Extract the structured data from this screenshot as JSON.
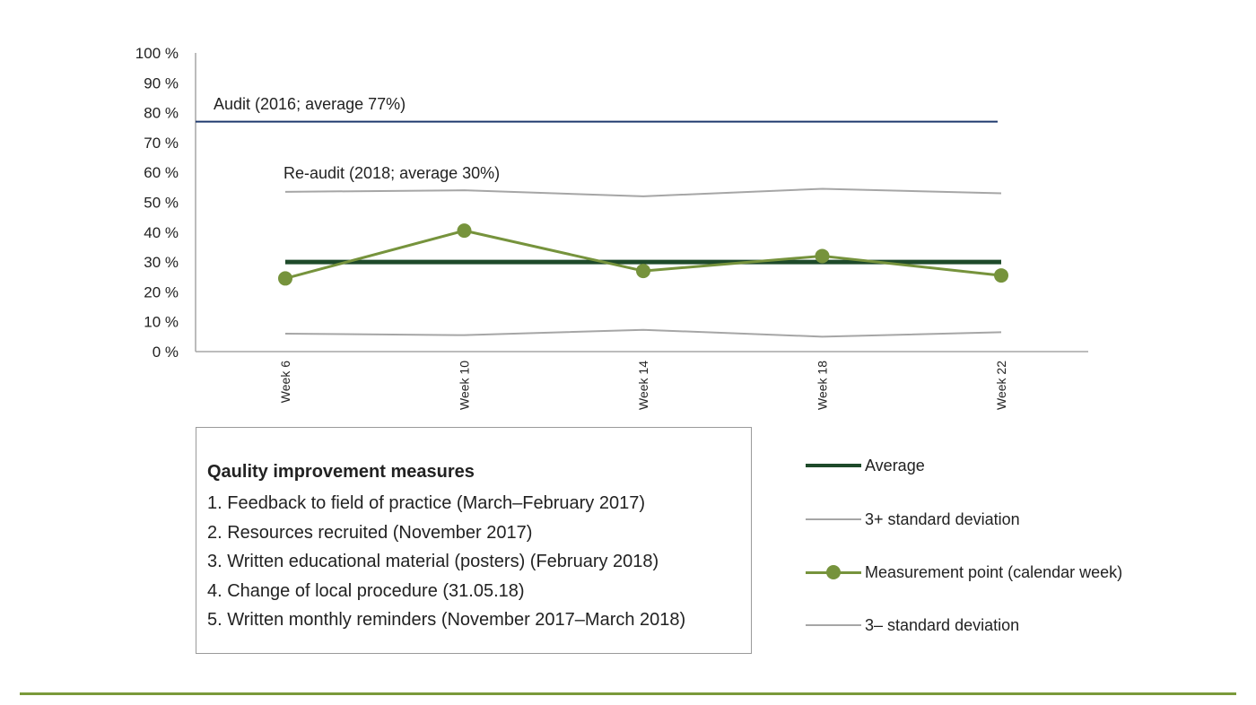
{
  "chart_data": {
    "type": "line",
    "y_axis": {
      "ticks": [
        "0 %",
        "10 %",
        "20 %",
        "30 %",
        "40 %",
        "50 %",
        "60 %",
        "70 %",
        "80 %",
        "90 %",
        "100 %"
      ],
      "ylim": [
        0,
        100
      ]
    },
    "categories": [
      "Week 6",
      "Week 10",
      "Week 14",
      "Week 18",
      "Week 22"
    ],
    "series": [
      {
        "key": "ucl",
        "name": "3+ standard deviation",
        "color": "#a6a6a6",
        "values": [
          53.5,
          54,
          52,
          54.5,
          53
        ]
      },
      {
        "key": "avg",
        "name": "Average",
        "color": "#1e4a2a",
        "values": [
          30,
          30,
          30,
          30,
          30
        ]
      },
      {
        "key": "meas",
        "name": "Measurement point (calendar week)",
        "color": "#76933c",
        "values": [
          24.5,
          40.5,
          27,
          32,
          25.5
        ]
      },
      {
        "key": "lcl",
        "name": "3– standard deviation",
        "color": "#a6a6a6",
        "values": [
          6,
          5.5,
          7.3,
          5,
          6.5
        ]
      }
    ],
    "reference_line": {
      "value": 77,
      "color": "#1f3a6e"
    },
    "annotations": {
      "audit": "Audit (2016; average 77%)",
      "reaudit": "Re-audit (2018; average 30%)"
    },
    "grid": false
  },
  "measures": {
    "title": "Qaulity improvement measures",
    "items": [
      "1. Feedback to field of practice (March–February 2017)",
      "2. Resources recruited (November 2017)",
      "3. Written educational material (posters) (February 2018)",
      "4. Change of local procedure (31.05.18)",
      "5. Written monthly reminders (November 2017–March 2018)"
    ]
  },
  "legend": [
    {
      "label": "Average",
      "color": "#1e4a2a",
      "marker": false,
      "thick": true
    },
    {
      "label": "3+ standard deviation",
      "color": "#a6a6a6",
      "marker": false,
      "thick": false
    },
    {
      "label": "Measurement point (calendar week)",
      "color": "#76933c",
      "marker": true,
      "thick": false
    },
    {
      "label": "3– standard deviation",
      "color": "#a6a6a6",
      "marker": false,
      "thick": false
    }
  ],
  "colors": {
    "footer_rule": "#7a9a3a",
    "axis": "#a6a6a6"
  }
}
